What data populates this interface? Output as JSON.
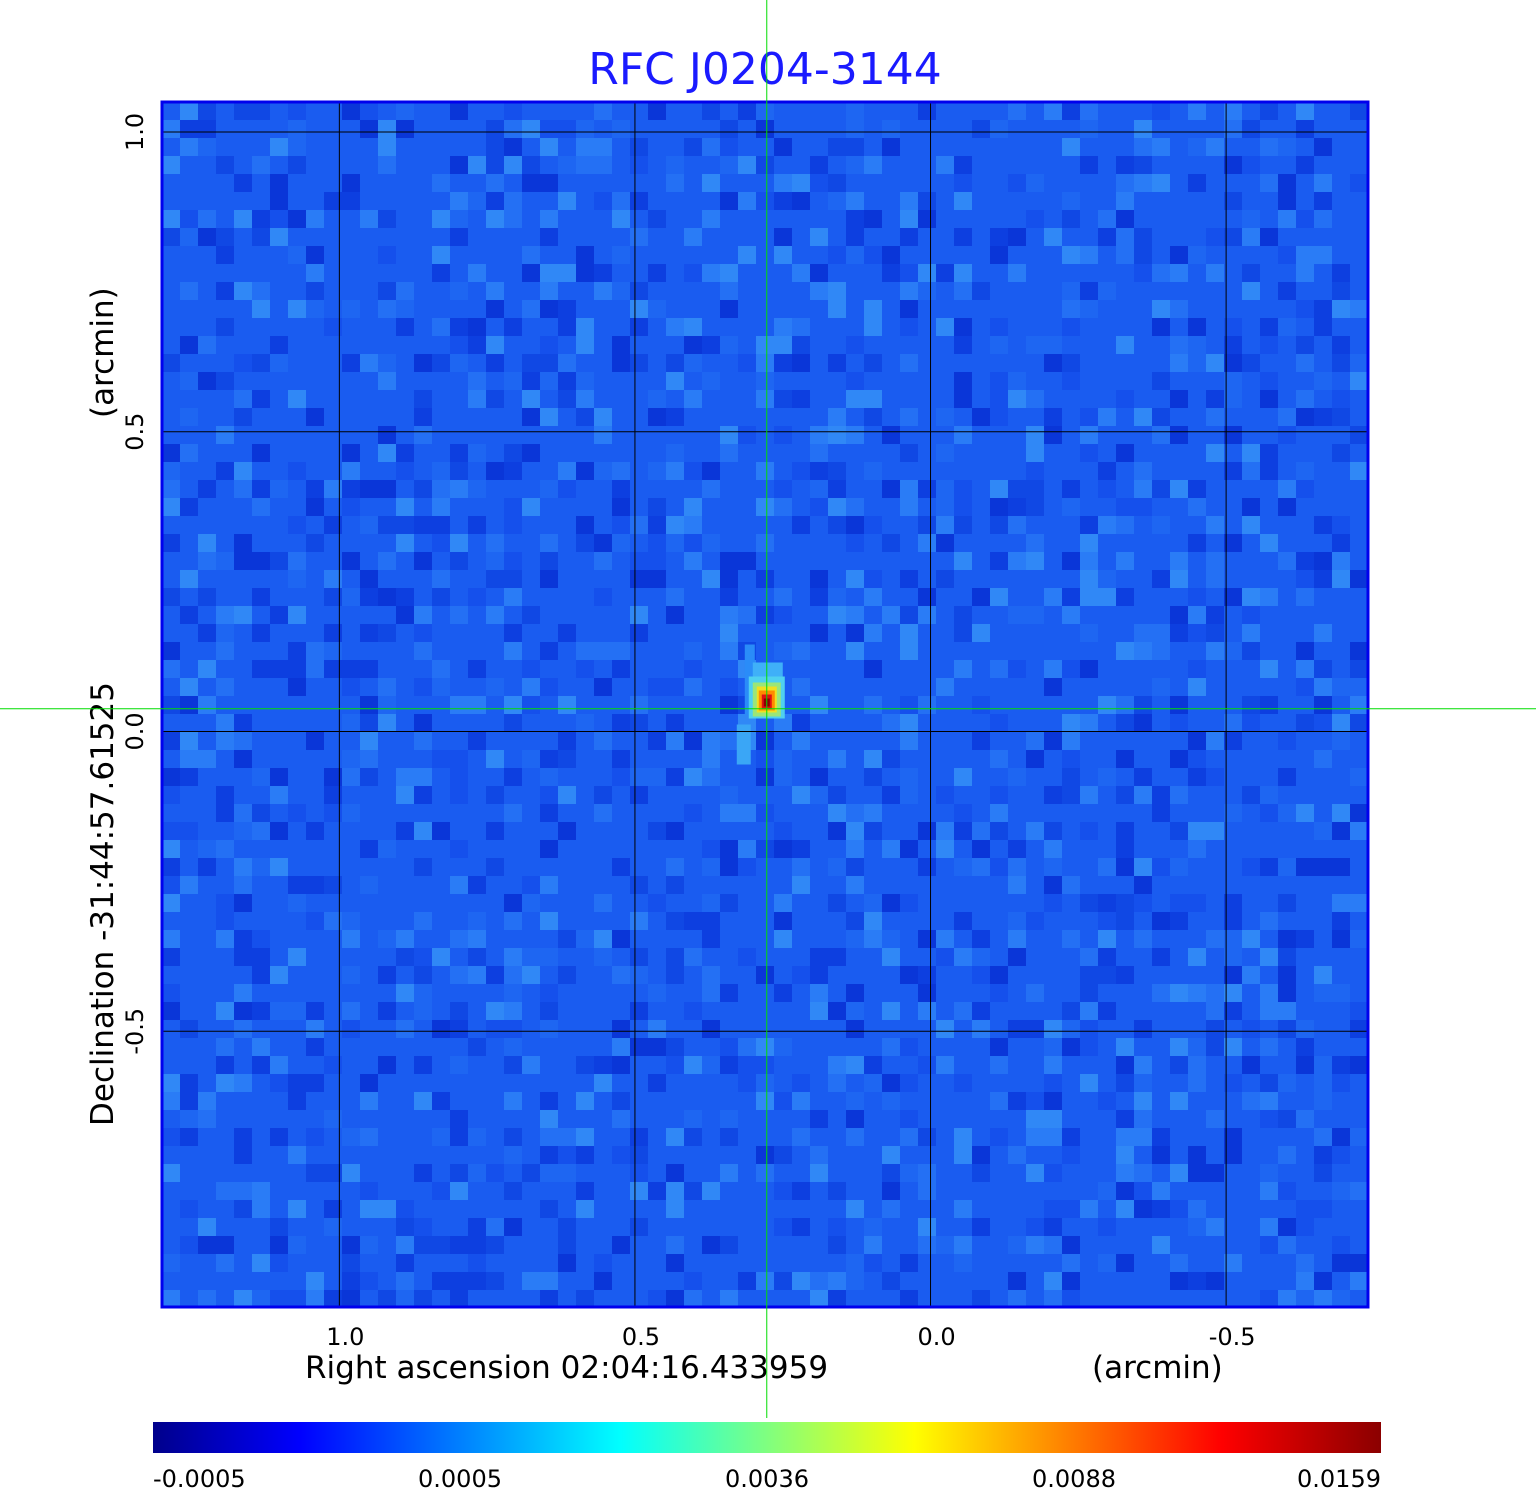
{
  "chart_data": {
    "type": "heatmap",
    "title": "RFC J0204-3144",
    "xlabel": "Right ascension  02:04:16.433959",
    "xlabel_unit": "(arcmin)",
    "ylabel": "Declination  -31:44:57.61525",
    "ylabel_unit": "(arcmin)",
    "x_ticks": [
      "1.0",
      "0.5",
      "0.0",
      "-0.5"
    ],
    "y_ticks": [
      "1.0",
      "0.5",
      "0.0",
      "-0.5"
    ],
    "x_tick_values": [
      1.0,
      0.5,
      0.0,
      -0.5
    ],
    "y_tick_values": [
      1.0,
      0.5,
      0.0,
      -0.5
    ],
    "xlim": [
      1.3,
      -0.74
    ],
    "ylim": [
      -0.96,
      1.05
    ],
    "grid": true,
    "crosshair": {
      "x": 0.277,
      "y": 0.038
    },
    "source_peak": {
      "x": 0.277,
      "y": 0.045,
      "value": 0.0159
    },
    "colorbar": {
      "ticks": [
        "-0.0005",
        "0.0005",
        "0.0036",
        "0.0088",
        "0.0159"
      ],
      "colors": [
        "#00008b",
        "#0000ff",
        "#00ffff",
        "#ffff00",
        "#ff0000",
        "#8b0000"
      ]
    },
    "colors": {
      "title": "#1a1aff",
      "frame": "#0000ee",
      "grid": "#000000",
      "crosshair": "#00dd00",
      "background_field": "#1a5cf0"
    }
  }
}
